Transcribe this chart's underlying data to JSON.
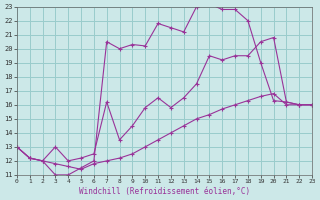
{
  "xlabel": "Windchill (Refroidissement éolien,°C)",
  "background_color": "#cce8e8",
  "grid_color": "#99cccc",
  "line_color": "#993399",
  "xmin": 0,
  "xmax": 23,
  "ymin": 11,
  "ymax": 23,
  "line1_x": [
    0,
    1,
    2,
    3,
    4,
    5,
    6,
    7,
    8,
    9,
    10,
    11,
    12,
    13,
    14,
    15,
    16,
    17,
    18,
    19,
    20,
    21,
    22,
    23
  ],
  "line1_y": [
    13.0,
    12.2,
    12.0,
    11.8,
    11.6,
    11.4,
    11.8,
    12.0,
    12.2,
    12.5,
    13.0,
    13.5,
    14.0,
    14.5,
    15.0,
    15.3,
    15.7,
    16.0,
    16.3,
    16.6,
    16.8,
    16.0,
    16.0,
    16.0
  ],
  "line2_x": [
    0,
    1,
    2,
    3,
    4,
    5,
    6,
    7,
    8,
    9,
    10,
    11,
    12,
    13,
    14,
    15,
    16,
    17,
    18,
    19,
    20,
    21,
    22,
    23
  ],
  "line2_y": [
    13.0,
    12.2,
    12.0,
    13.0,
    12.0,
    12.2,
    12.5,
    16.2,
    13.5,
    14.5,
    15.8,
    16.5,
    15.8,
    16.5,
    17.5,
    19.5,
    19.2,
    19.5,
    19.5,
    20.5,
    20.8,
    16.2,
    16.0,
    16.0
  ],
  "line3_x": [
    0,
    1,
    2,
    3,
    4,
    5,
    6,
    7,
    8,
    9,
    10,
    11,
    12,
    13,
    14,
    15,
    16,
    17,
    18,
    19,
    20,
    21,
    22,
    23
  ],
  "line3_y": [
    13.0,
    12.2,
    12.0,
    11.0,
    11.0,
    11.5,
    12.0,
    20.5,
    20.0,
    20.3,
    20.2,
    21.8,
    21.5,
    21.2,
    23.0,
    23.2,
    22.8,
    22.8,
    22.0,
    19.0,
    16.3,
    16.2,
    16.0,
    16.0
  ],
  "yticks": [
    11,
    12,
    13,
    14,
    15,
    16,
    17,
    18,
    19,
    20,
    21,
    22,
    23
  ],
  "xticks": [
    0,
    1,
    2,
    3,
    4,
    5,
    6,
    7,
    8,
    9,
    10,
    11,
    12,
    13,
    14,
    15,
    16,
    17,
    18,
    19,
    20,
    21,
    22,
    23
  ]
}
